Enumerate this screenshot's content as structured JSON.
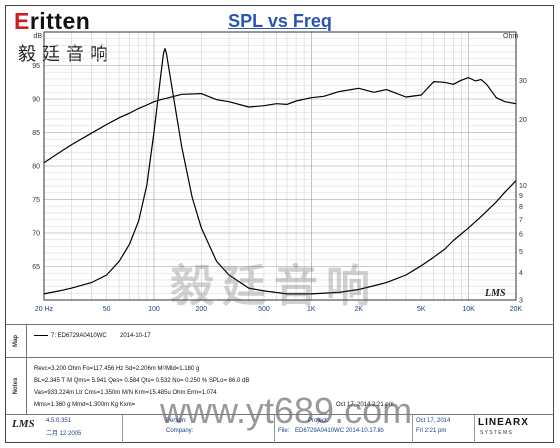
{
  "brand": {
    "logo_e": "E",
    "logo_rest": "ritten",
    "chinese": "毅廷音响"
  },
  "chart_data": {
    "type": "line",
    "title": "SPL vs Freq",
    "x_scale": "log",
    "xlim": [
      20,
      20000
    ],
    "x_ticks": [
      {
        "v": 20,
        "label": "20 Hz"
      },
      {
        "v": 50,
        "label": "50"
      },
      {
        "v": 100,
        "label": "100"
      },
      {
        "v": 200,
        "label": "200"
      },
      {
        "v": 500,
        "label": "500"
      },
      {
        "v": 1000,
        "label": "1K"
      },
      {
        "v": 2000,
        "label": "2K"
      },
      {
        "v": 5000,
        "label": "5K"
      },
      {
        "v": 10000,
        "label": "10K"
      },
      {
        "v": 20000,
        "label": "20K"
      }
    ],
    "y_left": {
      "unit": "dB",
      "ylim": [
        60,
        100
      ],
      "ticks": [
        65,
        70,
        75,
        80,
        85,
        90,
        95
      ]
    },
    "y_right": {
      "unit": "Ohm",
      "scale": "log",
      "ylim": [
        3,
        50
      ],
      "ticks": [
        {
          "v": 30,
          "label": "30"
        },
        {
          "v": 20,
          "label": "20"
        },
        {
          "v": 10,
          "label": "10"
        },
        {
          "v": 9,
          "label": "9"
        },
        {
          "v": 8,
          "label": "8"
        },
        {
          "v": 7,
          "label": "7"
        },
        {
          "v": 6,
          "label": "6"
        },
        {
          "v": 5,
          "label": "5"
        },
        {
          "v": 4,
          "label": "4"
        },
        {
          "v": 3,
          "label": "3"
        }
      ]
    },
    "grid": true,
    "series": [
      {
        "name": "",
        "axis": "left",
        "color": "#000000",
        "x": [
          20,
          25,
          30,
          40,
          50,
          60,
          70,
          80,
          90,
          100,
          110,
          120,
          150,
          200,
          250,
          300,
          400,
          500,
          600,
          700,
          800,
          1000,
          1200,
          1500,
          2000,
          2500,
          3000,
          3500,
          4000,
          5000,
          6000,
          7000,
          8000,
          9000,
          10000,
          11000,
          12000,
          13000,
          15000,
          17000,
          20000
        ],
        "y": [
          80.5,
          82.0,
          83.2,
          84.9,
          86.2,
          87.2,
          87.9,
          88.6,
          89.1,
          89.6,
          89.9,
          90.1,
          90.7,
          90.8,
          89.9,
          89.6,
          88.8,
          89.0,
          89.3,
          89.2,
          89.7,
          90.2,
          90.4,
          91.1,
          91.6,
          91.0,
          91.4,
          90.8,
          90.3,
          90.6,
          92.6,
          92.5,
          92.2,
          92.8,
          93.2,
          92.7,
          92.9,
          92.2,
          90.2,
          89.6,
          89.3
        ]
      },
      {
        "name": "",
        "axis": "right",
        "color": "#000000",
        "x": [
          20,
          25,
          30,
          40,
          50,
          60,
          70,
          80,
          90,
          100,
          110,
          115,
          117.5,
          120,
          130,
          150,
          175,
          200,
          250,
          300,
          400,
          500,
          700,
          1000,
          1500,
          2000,
          3000,
          4000,
          5000,
          6000,
          7000,
          8000,
          10000,
          12000,
          15000,
          17000,
          20000
        ],
        "y": [
          3.2,
          3.3,
          3.4,
          3.6,
          3.9,
          4.5,
          5.4,
          6.9,
          10.0,
          17.5,
          31.0,
          40.0,
          42.0,
          40.0,
          28.0,
          15.0,
          8.8,
          6.4,
          4.5,
          3.9,
          3.4,
          3.3,
          3.2,
          3.2,
          3.25,
          3.35,
          3.6,
          3.9,
          4.3,
          4.7,
          5.1,
          5.6,
          6.4,
          7.2,
          8.4,
          9.3,
          10.5
        ]
      }
    ]
  },
  "corner_logo": "LMS",
  "sections": {
    "map": "Map",
    "notes": "Notes"
  },
  "legend": {
    "entry": "7: ED6729A0410WC",
    "date": "2014-10-17"
  },
  "notes": {
    "line1": "Revc=3.200 Ohm  Fo=117.456 Hz  Sd=2.206m M²/Mld=1.180 g",
    "line2": "BL=2.345 T·M  Qms= 5.941  Qes= 0.584  Qts= 0.532  No= 0.250 %  SPLo= 86.0 dB",
    "line3": "Vas=933.224m Ltr  Cms=1.350m M/N  Krm=15.485u Ohm  Erm=1.074",
    "line4": "Mms=1.360 g  Mmd=1.300m Kg  Kxm=",
    "line5": "Oct 17, 2014  2:21 pm"
  },
  "watermark": {
    "chinese": "毅廷音响",
    "url": "www.yt689.com"
  },
  "footer": {
    "version": "4.5.0.351",
    "version_date": "二月 12 2005",
    "person_label": "Person:",
    "company_label": "Company:",
    "project_label": "Project:",
    "file_label": "File:",
    "file_value": "ED6729A0410WC  2014-10.17.lib",
    "date": "Oct 17, 2014",
    "time": "Fri  2:21 pm",
    "brand": "LINEARX",
    "brand_sub": "S Y S T E M S"
  }
}
